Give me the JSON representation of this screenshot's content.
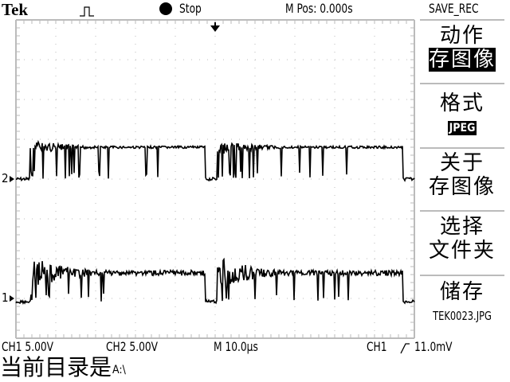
{
  "header": {
    "brand": "Tek",
    "acq_icon": "pulse-icon",
    "run_state": "Stop",
    "position": "M Pos: 0.000s",
    "menu_title": "SAVE_REC"
  },
  "menu": {
    "action_label": "动作",
    "action_value": "存图像",
    "format_label": "格式",
    "format_value": "JPEG",
    "about_line1": "关于",
    "about_line2": "存图像",
    "select_line1": "选择",
    "select_line2": "文件夹",
    "save_label": "储存",
    "save_filename": "TEK0023.JPG"
  },
  "status": {
    "ch1_scale": "CH1  5.00V",
    "ch2_scale": "CH2  5.00V",
    "timebase": "M 10.0µs",
    "trigger_source": "CH1",
    "trigger_level": "11.0mV",
    "trigger_slope_icon": "rising-edge-icon"
  },
  "markers": {
    "ch1": "1",
    "ch2": "2"
  },
  "footer": {
    "current_dir_label": "当前目录是",
    "current_dir": "A:\\"
  }
}
